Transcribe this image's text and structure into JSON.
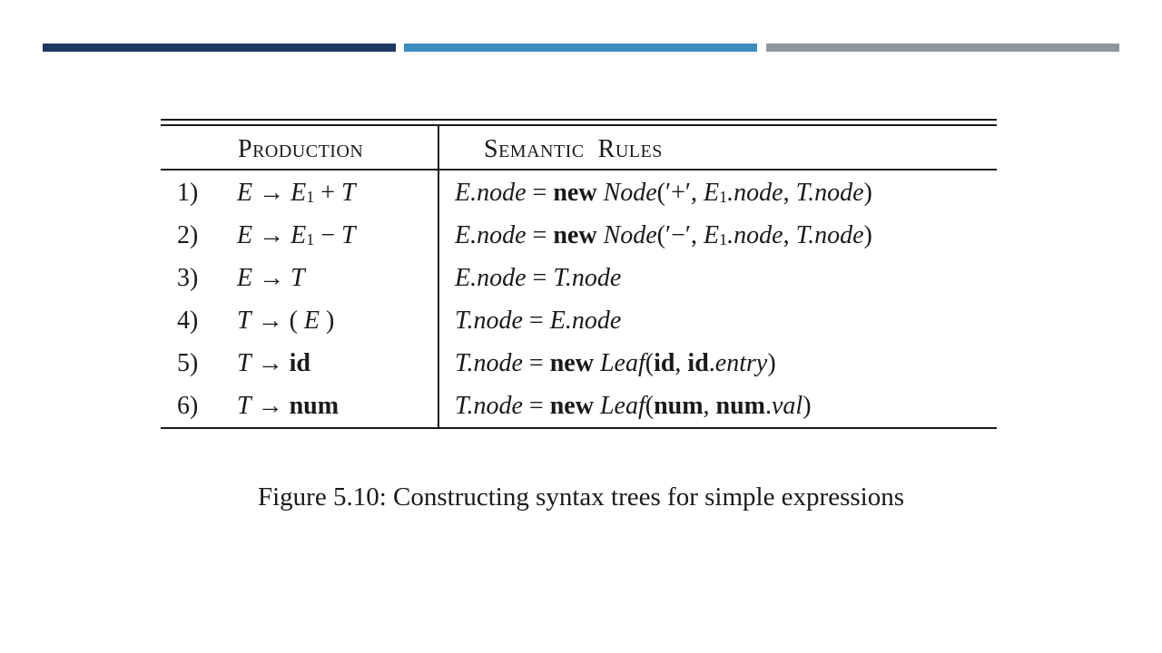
{
  "colors": {
    "bar1": "#1f3864",
    "bar2": "#3d8dbf",
    "bar3": "#8e979e"
  },
  "table": {
    "header": {
      "production": "Production",
      "semantic_rules": "Semantic  Rules"
    },
    "rows": [
      {
        "num": "1)",
        "lhs": "E",
        "arrow": "→",
        "rhs": [
          {
            "t": "E",
            "c": "it"
          },
          {
            "t": "1",
            "c": "sub"
          },
          {
            "t": " + ",
            "c": ""
          },
          {
            "t": "T",
            "c": "it"
          }
        ],
        "rule": [
          {
            "t": "E.node",
            "c": "it"
          },
          {
            "t": " = ",
            "c": ""
          },
          {
            "t": "new",
            "c": "bf"
          },
          {
            "t": " ",
            "c": ""
          },
          {
            "t": "Node",
            "c": "it"
          },
          {
            "t": "(′+′, ",
            "c": ""
          },
          {
            "t": "E",
            "c": "it"
          },
          {
            "t": "1",
            "c": "sub"
          },
          {
            "t": ".node",
            "c": "it"
          },
          {
            "t": ", ",
            "c": ""
          },
          {
            "t": "T.node",
            "c": "it"
          },
          {
            "t": ")",
            "c": ""
          }
        ]
      },
      {
        "num": "2)",
        "lhs": "E",
        "arrow": "→",
        "rhs": [
          {
            "t": "E",
            "c": "it"
          },
          {
            "t": "1",
            "c": "sub"
          },
          {
            "t": " − ",
            "c": ""
          },
          {
            "t": "T",
            "c": "it"
          }
        ],
        "rule": [
          {
            "t": "E.node",
            "c": "it"
          },
          {
            "t": " = ",
            "c": ""
          },
          {
            "t": "new",
            "c": "bf"
          },
          {
            "t": " ",
            "c": ""
          },
          {
            "t": "Node",
            "c": "it"
          },
          {
            "t": "(′−′, ",
            "c": ""
          },
          {
            "t": "E",
            "c": "it"
          },
          {
            "t": "1",
            "c": "sub"
          },
          {
            "t": ".node",
            "c": "it"
          },
          {
            "t": ", ",
            "c": ""
          },
          {
            "t": "T.node",
            "c": "it"
          },
          {
            "t": ")",
            "c": ""
          }
        ]
      },
      {
        "num": "3)",
        "lhs": "E",
        "arrow": "→",
        "rhs": [
          {
            "t": "T",
            "c": "it"
          }
        ],
        "rule": [
          {
            "t": "E.node",
            "c": "it"
          },
          {
            "t": " = ",
            "c": ""
          },
          {
            "t": "T.node",
            "c": "it"
          }
        ]
      },
      {
        "num": "4)",
        "lhs": "T",
        "arrow": "→",
        "rhs": [
          {
            "t": "( ",
            "c": ""
          },
          {
            "t": "E",
            "c": "it"
          },
          {
            "t": " )",
            "c": ""
          }
        ],
        "rule": [
          {
            "t": "T.node",
            "c": "it"
          },
          {
            "t": " = ",
            "c": ""
          },
          {
            "t": "E.node",
            "c": "it"
          }
        ]
      },
      {
        "num": "5)",
        "lhs": "T",
        "arrow": "→",
        "rhs": [
          {
            "t": "id",
            "c": "bf"
          }
        ],
        "rule": [
          {
            "t": "T.node",
            "c": "it"
          },
          {
            "t": " = ",
            "c": ""
          },
          {
            "t": "new",
            "c": "bf"
          },
          {
            "t": " ",
            "c": ""
          },
          {
            "t": "Leaf",
            "c": "it"
          },
          {
            "t": "(",
            "c": ""
          },
          {
            "t": "id",
            "c": "bf"
          },
          {
            "t": ", ",
            "c": ""
          },
          {
            "t": "id",
            "c": "bf"
          },
          {
            "t": ".",
            "c": ""
          },
          {
            "t": "entry",
            "c": "it"
          },
          {
            "t": ")",
            "c": ""
          }
        ]
      },
      {
        "num": "6)",
        "lhs": "T",
        "arrow": "→",
        "rhs": [
          {
            "t": "num",
            "c": "bf"
          }
        ],
        "rule": [
          {
            "t": "T.node",
            "c": "it"
          },
          {
            "t": " = ",
            "c": ""
          },
          {
            "t": "new",
            "c": "bf"
          },
          {
            "t": " ",
            "c": ""
          },
          {
            "t": "Leaf",
            "c": "it"
          },
          {
            "t": "(",
            "c": ""
          },
          {
            "t": "num",
            "c": "bf"
          },
          {
            "t": ", ",
            "c": ""
          },
          {
            "t": "num",
            "c": "bf"
          },
          {
            "t": ".",
            "c": ""
          },
          {
            "t": "val",
            "c": "it"
          },
          {
            "t": ")",
            "c": ""
          }
        ]
      }
    ]
  },
  "caption": "Figure 5.10: Constructing syntax trees for simple expressions"
}
